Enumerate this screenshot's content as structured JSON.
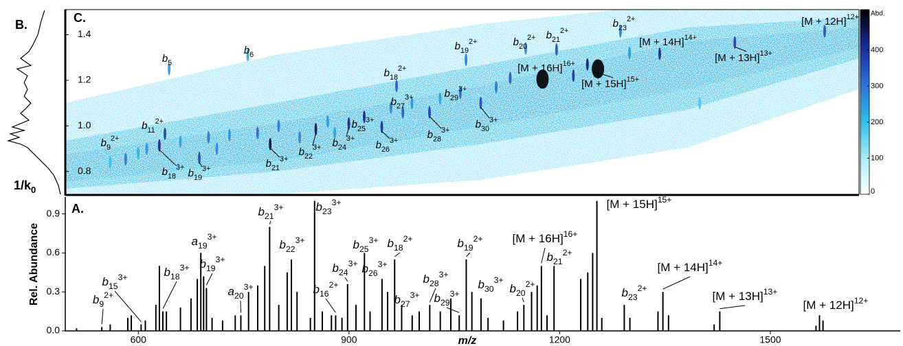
{
  "chart_data": [
    {
      "type": "spectrum",
      "panel": "A.",
      "xlabel": "m/z",
      "ylabel": "Rel. Abundance",
      "xlim": [
        496,
        1685
      ],
      "xticks": [
        600,
        900,
        1200,
        1500
      ],
      "ylim": [
        0,
        1.03
      ],
      "yticks": [
        {
          "value": 0,
          "label": "0.0"
        },
        0.3,
        0.6,
        0.9
      ],
      "color": "#000000",
      "series": [
        {
          "x": [
            548,
            604,
            635,
            689,
            697,
            746,
            787,
            818,
            851,
            881,
            898,
            922,
            947,
            965,
            1000,
            1015,
            1057,
            1067,
            1088,
            1149,
            1174,
            1192,
            1253,
            1292,
            1347,
            1428,
            1570
          ],
          "values": [
            0.03,
            0.05,
            0.15,
            0.6,
            0.33,
            0.12,
            0.8,
            0.55,
            1.0,
            0.12,
            0.36,
            0.6,
            0.4,
            0.55,
            0.15,
            0.2,
            0.12,
            0.55,
            0.25,
            0.2,
            0.5,
            0.5,
            1.0,
            0.2,
            0.3,
            0.15,
            0.12
          ],
          "labels": [
            {
              "base": "b",
              "sub": "9",
              "sup": "2+"
            },
            {
              "base": "b",
              "sub": "15",
              "sup": "3+"
            },
            {
              "base": "b",
              "sub": "18",
              "sup": "3+"
            },
            {
              "base": "a",
              "sub": "19",
              "sup": "3+"
            },
            {
              "base": "b",
              "sub": "19",
              "sup": "3+"
            },
            {
              "base": "a",
              "sub": "20",
              "sup": "3+"
            },
            {
              "base": "b",
              "sub": "21",
              "sup": "3+"
            },
            {
              "base": "b",
              "sub": "22",
              "sup": "3+"
            },
            {
              "base": "b",
              "sub": "23",
              "sup": "3+"
            },
            {
              "base": "b",
              "sub": "16",
              "sup": "2+"
            },
            {
              "base": "b",
              "sub": "24",
              "sup": "3+"
            },
            {
              "base": "b",
              "sub": "25",
              "sup": "3+"
            },
            {
              "base": "b",
              "sub": "26",
              "sup": "3+"
            },
            {
              "base": "b",
              "sub": "18",
              "sup": "2+"
            },
            {
              "base": "b",
              "sub": "27",
              "sup": "3+"
            },
            {
              "base": "b",
              "sub": "28",
              "sup": "3+"
            },
            {
              "base": "b",
              "sub": "29",
              "sup": "3+"
            },
            {
              "base": "b",
              "sub": "19",
              "sup": "2+"
            },
            {
              "base": "b",
              "sub": "30",
              "sup": "3+"
            },
            {
              "base": "b",
              "sub": "20",
              "sup": "2+"
            },
            {
              "base": "[M + 16H]",
              "sup": "16+"
            },
            {
              "base": "b",
              "sub": "21",
              "sup": "2+"
            },
            {
              "base": "[M + 15H]",
              "sup": "15+"
            },
            {
              "base": "b",
              "sub": "23",
              "sup": "2+"
            },
            {
              "base": "[M + 14H]",
              "sup": "14+"
            },
            {
              "base": "[M + 13H]",
              "sup": "13+"
            },
            {
              "base": "[M + 12H]",
              "sup": "12+"
            }
          ]
        },
        {
          "x": [
            512,
            560,
            585,
            590,
            610,
            625,
            630,
            640,
            660,
            675,
            684,
            693,
            705,
            720,
            738,
            757,
            770,
            780,
            800,
            812,
            826,
            845,
            862,
            875,
            890,
            910,
            930,
            955,
            975,
            990,
            1030,
            1045,
            1075,
            1098,
            1120,
            1140,
            1160,
            1168,
            1182,
            1230,
            1240,
            1247,
            1260,
            1300,
            1340,
            1355,
            1420,
            1565,
            1575
          ],
          "values": [
            0.02,
            0.05,
            0.1,
            0.12,
            0.08,
            0.2,
            0.5,
            0.15,
            0.18,
            0.25,
            0.4,
            0.42,
            0.1,
            0.08,
            0.12,
            0.3,
            0.35,
            0.5,
            0.2,
            0.45,
            0.3,
            0.1,
            0.15,
            0.12,
            0.1,
            0.2,
            0.15,
            0.3,
            0.2,
            0.12,
            0.15,
            0.25,
            0.3,
            0.1,
            0.08,
            0.15,
            0.3,
            0.35,
            0.12,
            0.4,
            0.45,
            0.6,
            0.1,
            0.1,
            0.15,
            0.12,
            0.05,
            0.04,
            0.08
          ]
        }
      ]
    },
    {
      "type": "mobility-map",
      "panel": "C.",
      "colorbar_label": "Abd.",
      "xlim": [
        496,
        1627
      ],
      "ylim": [
        0.7,
        1.51
      ],
      "yticks": [
        0.8,
        {
          "value": 1.0,
          "label": "1.0"
        },
        1.2,
        1.4
      ],
      "zlim": [
        0,
        512
      ],
      "zticks": [
        0,
        100,
        200,
        300,
        400
      ],
      "colormap": [
        "#ffffff",
        "#a6ecf8",
        "#2bbde6",
        "#2b6fd6",
        "#1a2a9a",
        "#000000"
      ],
      "series": [
        {
          "x": [
            582,
            638,
            644,
            756,
            630,
            687,
            788,
            853,
            900,
            947,
            1015,
            1088,
            922,
            977,
            1059,
            968,
            1067,
            1152,
            1196,
            1287,
            1176,
            1255,
            1343,
            1450,
            1578
          ],
          "y": [
            0.854,
            0.965,
            1.25,
            1.31,
            0.914,
            0.86,
            0.92,
            0.986,
            1.01,
            0.995,
            1.06,
            1.1,
            1.04,
            1.06,
            1.145,
            1.175,
            1.29,
            1.34,
            1.335,
            1.415,
            1.205,
            1.25,
            1.316,
            1.365,
            1.415
          ],
          "values": [
            300,
            380,
            260,
            240,
            420,
            360,
            480,
            460,
            420,
            400,
            380,
            360,
            420,
            340,
            320,
            340,
            300,
            280,
            360,
            300,
            512,
            512,
            420,
            380,
            360
          ],
          "labels": [
            {
              "base": "b",
              "sub": "9",
              "sup": "2+"
            },
            {
              "base": "b",
              "sub": "11",
              "sup": "2+"
            },
            {
              "base": "b",
              "sub": "5"
            },
            {
              "base": "b",
              "sub": "6"
            },
            {
              "base": "b",
              "sub": "18",
              "sup": "3+"
            },
            {
              "base": "b",
              "sub": "19",
              "sup": "3+"
            },
            {
              "base": "b",
              "sub": "21",
              "sup": "3+"
            },
            {
              "base": "b",
              "sub": "22",
              "sup": "3+"
            },
            {
              "base": "b",
              "sub": "24",
              "sup": "3+"
            },
            {
              "base": "b",
              "sub": "26",
              "sup": "3+"
            },
            {
              "base": "b",
              "sub": "28",
              "sup": "3+"
            },
            {
              "base": "b",
              "sub": "30",
              "sup": "3+"
            },
            {
              "base": "b",
              "sub": "25",
              "sup": "3+"
            },
            {
              "base": "b",
              "sub": "27",
              "sup": "3+"
            },
            {
              "base": "b",
              "sub": "29",
              "sup": "3+"
            },
            {
              "base": "b",
              "sub": "18",
              "sup": "2+"
            },
            {
              "base": "b",
              "sub": "19",
              "sup": "2+"
            },
            {
              "base": "b",
              "sub": "20",
              "sup": "2+"
            },
            {
              "base": "b",
              "sub": "21",
              "sup": "2+"
            },
            {
              "base": "b",
              "sub": "23",
              "sup": "2+"
            },
            {
              "base": "[M + 16H]",
              "sup": "16+"
            },
            {
              "base": "[M + 15H]",
              "sup": "15+"
            },
            {
              "base": "[M + 14H]",
              "sup": "14+"
            },
            {
              "base": "[M + 13H]",
              "sup": "13+"
            },
            {
              "base": "[M + 12H]",
              "sup": "12+"
            }
          ]
        },
        {
          "x": [
            560,
            600,
            612,
            660,
            700,
            712,
            730,
            770,
            800,
            830,
            870,
            880,
            960,
            990,
            1030,
            1110,
            1130,
            1220,
            1240,
            1300,
            1400
          ],
          "y": [
            0.84,
            0.88,
            0.9,
            0.93,
            0.95,
            0.9,
            0.96,
            0.97,
            1.0,
            0.95,
            1.02,
            0.97,
            1.08,
            1.1,
            1.12,
            1.17,
            1.21,
            1.22,
            1.27,
            1.32,
            1.1
          ],
          "values": [
            200,
            220,
            260,
            240,
            300,
            280,
            260,
            320,
            300,
            280,
            260,
            240,
            280,
            260,
            240,
            300,
            340,
            400,
            440,
            260,
            180
          ]
        }
      ]
    },
    {
      "type": "mobilogram",
      "panel": "B.",
      "ylabel": {
        "base": "1/k",
        "sub": "0"
      },
      "xlim": [
        0,
        1
      ],
      "x_reversed": true,
      "ylim": [
        0.7,
        1.51
      ],
      "color": "#000000",
      "x": [
        0.29,
        0.35,
        0.41,
        0.5,
        0.575,
        0.725,
        0.54,
        0.79,
        0.6,
        0.66,
        0.6,
        0.66,
        0.54,
        0.63,
        0.725,
        0.575,
        0.875,
        0.66,
        0.91,
        0.75,
        0.95,
        0.725,
        0.6,
        0.475,
        0.35,
        0.225,
        0.125,
        0.04,
        0
      ],
      "y": [
        1.506,
        1.461,
        1.401,
        1.356,
        1.326,
        1.296,
        1.265,
        1.25,
        1.22,
        1.19,
        1.16,
        1.13,
        1.1,
        1.076,
        1.055,
        1.025,
        0.995,
        0.98,
        0.965,
        0.95,
        0.935,
        0.92,
        0.905,
        0.875,
        0.845,
        0.815,
        0.785,
        0.74,
        0.7
      ]
    }
  ]
}
